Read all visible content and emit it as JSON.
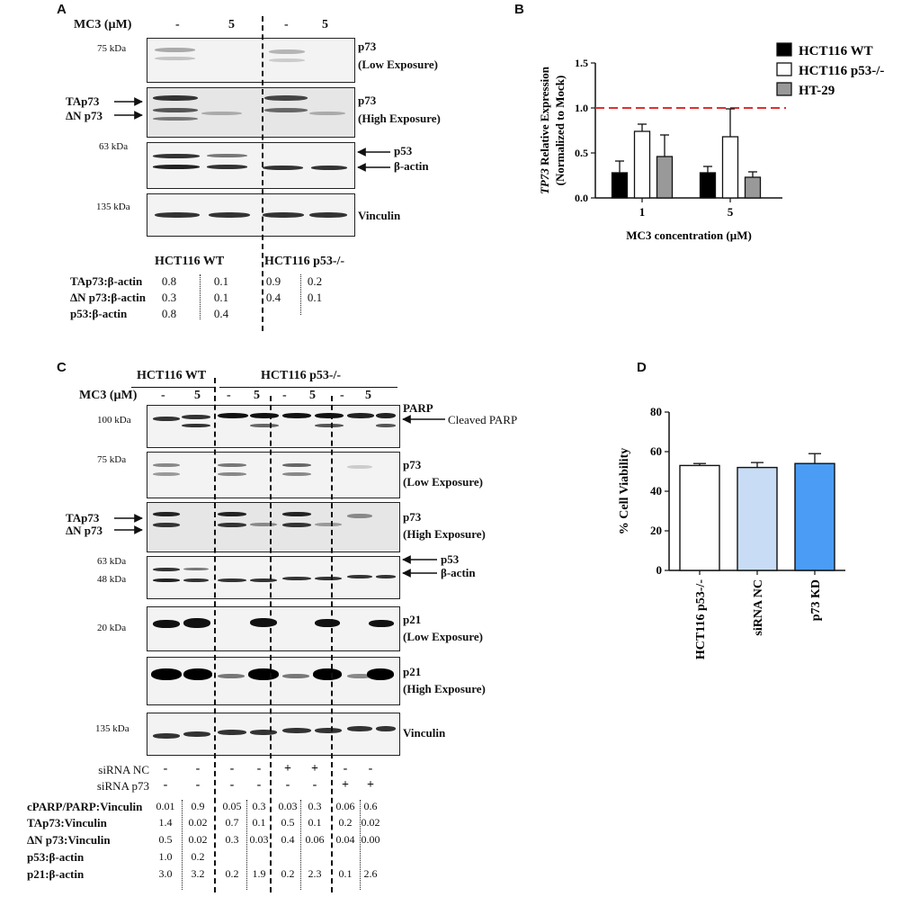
{
  "panel_a": {
    "letter": "A",
    "mc3_label": "MC3 (µM)",
    "lanes": [
      "-",
      "5",
      "-",
      "5"
    ],
    "markers": [
      "75 kDa",
      "63 kDa",
      "135 kDa"
    ],
    "blot_labels": [
      "p73",
      "(Low Exposure)",
      "p73",
      "(High Exposure)",
      "p53",
      "β-actin",
      "Vinculin"
    ],
    "left_arrows": [
      "TAp73",
      "ΔN p73"
    ],
    "cell_lines": [
      "HCT116 WT",
      "HCT116  p53-/-"
    ],
    "quant": [
      {
        "label": "TAp73:β-actin",
        "values": [
          "0.8",
          "0.1",
          "0.9",
          "0.2"
        ]
      },
      {
        "label": "ΔN p73:β-actin",
        "values": [
          "0.3",
          "0.1",
          "0.4",
          "0.1"
        ]
      },
      {
        "label": "p53:β-actin",
        "values": [
          "0.8",
          "0.4",
          "",
          ""
        ]
      }
    ]
  },
  "panel_b": {
    "letter": "B",
    "chart_data": {
      "type": "bar",
      "categories": [
        "1",
        "5"
      ],
      "series": [
        {
          "name": "HCT116 WT",
          "values": [
            0.28,
            0.28
          ],
          "errors": [
            0.13,
            0.07
          ],
          "color": "#000000"
        },
        {
          "name": "HCT116 p53-/-",
          "values": [
            0.74,
            0.68
          ],
          "errors": [
            0.08,
            0.31
          ],
          "color": "#ffffff"
        },
        {
          "name": "HT-29",
          "values": [
            0.46,
            0.23
          ],
          "errors": [
            0.24,
            0.06
          ],
          "color": "#999999"
        }
      ],
      "reference_line": 1.0,
      "reference_color": "#e03030",
      "ylim": [
        0,
        1.5
      ],
      "yticks": [
        "0.0",
        "0.5",
        "1.0",
        "1.5"
      ],
      "ylabel_italic": "TP73",
      "ylabel": " Relative Expression",
      "ylabel2": "(Normalized to Mock)",
      "xlabel": "MC3 concentration (µM)",
      "legend_position": "top-right"
    }
  },
  "panel_c": {
    "letter": "C",
    "cell_lines": [
      "HCT116 WT",
      "HCT116  p53-/-"
    ],
    "mc3_label": "MC3 (µM)",
    "lanes": [
      "-",
      "5",
      "-",
      "5",
      "-",
      "5",
      "-",
      "5"
    ],
    "markers": [
      "100 kDa",
      "75 kDa",
      "63 kDa",
      "48 kDa",
      "20 kDa",
      "135 kDa"
    ],
    "blot_labels": [
      "PARP",
      "Cleaved PARP",
      "p73",
      "(Low Exposure)",
      "p73",
      "(High Exposure)",
      "p53",
      "β-actin",
      "p21",
      "(Low Exposure)",
      "p21",
      "(High Exposure)",
      "Vinculin"
    ],
    "left_arrows": [
      "TAp73",
      "ΔN p73"
    ],
    "sirna_rows": [
      {
        "label": "siRNA NC",
        "values": [
          "-",
          "-",
          "-",
          "-",
          "+",
          "+",
          "-",
          "-"
        ]
      },
      {
        "label": "siRNA p73",
        "values": [
          "-",
          "-",
          "-",
          "-",
          "-",
          "-",
          "+",
          "+"
        ]
      }
    ],
    "quant": [
      {
        "label": "cPARP/PARP:Vinculin",
        "values": [
          "0.01",
          "0.9",
          "0.05",
          "0.3",
          "0.03",
          "0.3",
          "0.06",
          "0.6"
        ]
      },
      {
        "label": "TAp73:Vinculin",
        "values": [
          "1.4",
          "0.02",
          "0.7",
          "0.1",
          "0.5",
          "0.1",
          "0.2",
          "0.02"
        ]
      },
      {
        "label": "ΔN p73:Vinculin",
        "values": [
          "0.5",
          "0.02",
          "0.3",
          "0.03",
          "0.4",
          "0.06",
          "0.04",
          "0.00"
        ]
      },
      {
        "label": "p53:β-actin",
        "values": [
          "1.0",
          "0.2",
          "",
          "",
          "",
          "",
          "",
          ""
        ]
      },
      {
        "label": "p21:β-actin",
        "values": [
          "3.0",
          "3.2",
          "0.2",
          "1.9",
          "0.2",
          "2.3",
          "0.1",
          "2.6"
        ]
      }
    ]
  },
  "panel_d": {
    "letter": "D",
    "chart_data": {
      "type": "bar",
      "categories": [
        "HCT116 p53-/-",
        "siRNA NC",
        "p73 KD"
      ],
      "values": [
        53,
        52,
        54
      ],
      "errors": [
        1,
        2.5,
        5
      ],
      "colors": [
        "#ffffff",
        "#c8ddf5",
        "#4a9cf5"
      ],
      "ylim": [
        0,
        80
      ],
      "yticks": [
        "0",
        "20",
        "40",
        "60",
        "80"
      ],
      "ylabel": "% Cell Viability"
    }
  }
}
